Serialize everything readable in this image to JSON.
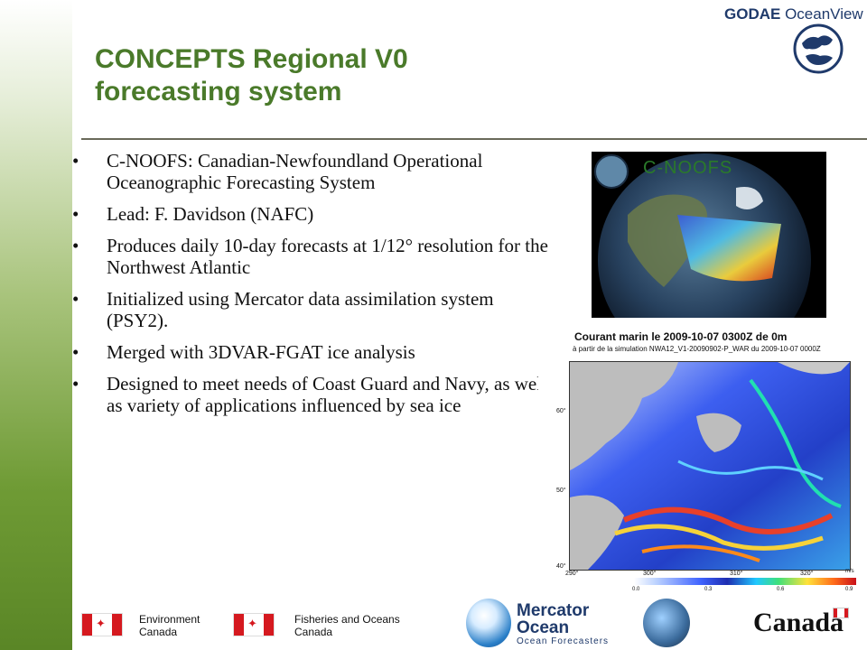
{
  "header": {
    "logo_bold": "GODAE",
    "logo_light": "OceanView",
    "title_line1": "CONCEPTS Regional V0",
    "title_line2": "forecasting system"
  },
  "bullets": [
    "C-NOOFS: Canadian-Newfoundland Operational Oceanographic Forecasting System",
    "Lead: F. Davidson (NAFC)",
    "Produces daily 10-day forecasts at 1/12° resolution for the Northwest Atlantic",
    "Initialized using Mercator data assimilation system (PSY2).",
    "Merged with 3DVAR-FGAT ice analysis",
    "Designed to meet needs of Coast Guard and Navy, as well as variety of applications influenced by sea ice"
  ],
  "globe_image": {
    "label": "C-NOOFS"
  },
  "current_map": {
    "title": "Courant marin le 2009-10-07 0300Z de 0m",
    "subtitle": "à partir de la simulation NWA12_V1-20090902-P_WAR du 2009-10-07 0000Z",
    "lat_ticks": [
      "60°",
      "50°",
      "40°"
    ],
    "lon_ticks": [
      "290°",
      "300°",
      "310°",
      "320°"
    ],
    "colorbar_ticks": [
      "0.0",
      "0.3",
      "0.6",
      "0.9"
    ],
    "colorbar_unit": "m/s"
  },
  "footer": {
    "dept1_line1": "Environment",
    "dept1_line2": "Canada",
    "dept2_line1": "Fisheries and Oceans",
    "dept2_line2": "Canada",
    "mercator_line1": "Mercator",
    "mercator_line2": "Ocean",
    "mercator_tagline": "Ocean Forecasters",
    "canada_wordmark": "Canada"
  }
}
